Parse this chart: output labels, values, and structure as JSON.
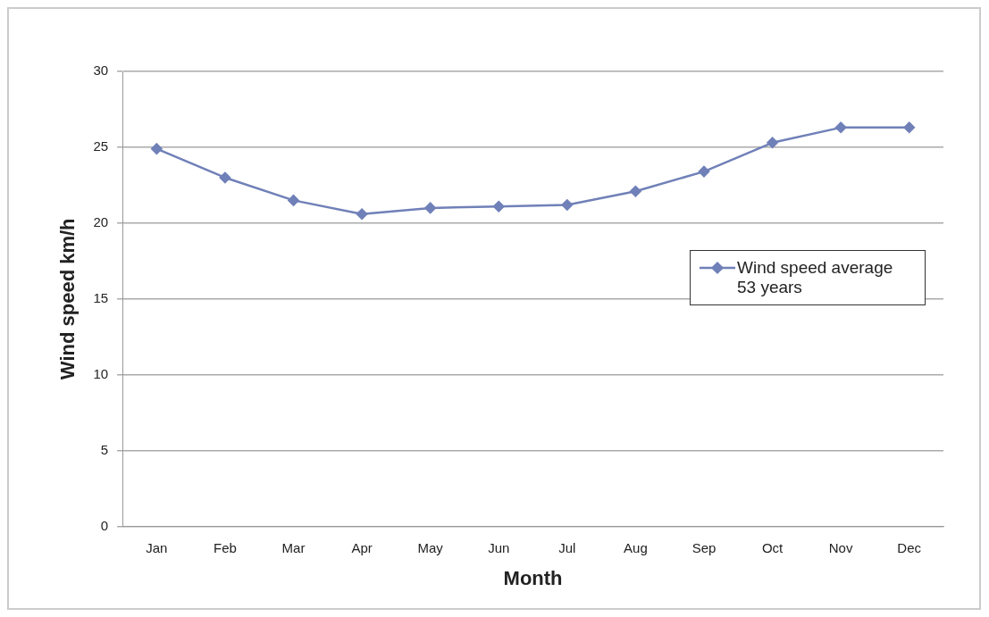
{
  "chart_data": {
    "type": "line",
    "xlabel": "Month",
    "ylabel": "Wind speed km/h",
    "categories": [
      "Jan",
      "Feb",
      "Mar",
      "Apr",
      "May",
      "Jun",
      "Jul",
      "Aug",
      "Sep",
      "Oct",
      "Nov",
      "Dec"
    ],
    "series": [
      {
        "name": "Wind speed average 53 years",
        "color": "#7080b8",
        "values": [
          24.9,
          23.0,
          21.5,
          20.6,
          21.0,
          21.1,
          21.2,
          22.1,
          23.4,
          25.3,
          26.3,
          26.3
        ]
      }
    ],
    "ylim": [
      0,
      30
    ],
    "yticks": [
      0,
      5,
      10,
      15,
      20,
      25,
      30
    ],
    "grid": "y",
    "legend": "right",
    "marker": "diamond",
    "line_style": "solid"
  }
}
